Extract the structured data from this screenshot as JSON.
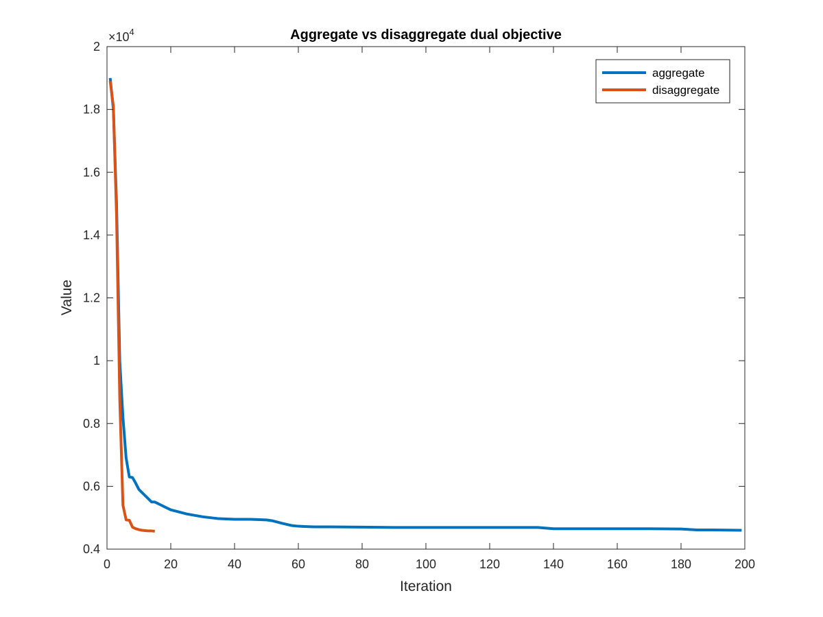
{
  "chart_data": {
    "type": "line",
    "title": "Aggregate vs disaggregate dual objective",
    "xlabel": "Iteration",
    "ylabel": "Value",
    "xlim": [
      0,
      200
    ],
    "ylim": [
      4000,
      20000
    ],
    "x_ticks": [
      0,
      20,
      40,
      60,
      80,
      100,
      120,
      140,
      160,
      180,
      200
    ],
    "x_tick_labels": [
      "0",
      "20",
      "40",
      "60",
      "80",
      "100",
      "120",
      "140",
      "160",
      "180",
      "200"
    ],
    "y_ticks": [
      4000,
      6000,
      8000,
      10000,
      12000,
      14000,
      16000,
      18000,
      20000
    ],
    "y_tick_labels": [
      "0.4",
      "0.6",
      "0.8",
      "1",
      "1.2",
      "1.4",
      "1.6",
      "1.8",
      "2"
    ],
    "y_exponent_label": "×10",
    "y_exponent_power": "4",
    "grid": false,
    "legend_position": "top-right",
    "series": [
      {
        "name": "aggregate",
        "color": "#0072BD",
        "x": [
          1,
          2,
          3,
          4,
          5,
          6,
          7,
          8,
          9,
          10,
          11,
          12,
          13,
          14,
          15,
          16,
          17,
          18,
          20,
          22,
          25,
          30,
          35,
          40,
          45,
          50,
          52,
          55,
          58,
          60,
          62,
          65,
          70,
          80,
          90,
          100,
          110,
          120,
          130,
          135,
          140,
          150,
          160,
          170,
          180,
          185,
          190,
          199
        ],
        "y": [
          19000,
          18000,
          15000,
          10000,
          8200,
          6900,
          6300,
          6280,
          6100,
          5900,
          5800,
          5700,
          5600,
          5500,
          5500,
          5450,
          5400,
          5350,
          5250,
          5200,
          5120,
          5030,
          4970,
          4950,
          4950,
          4930,
          4900,
          4820,
          4750,
          4730,
          4720,
          4710,
          4710,
          4700,
          4690,
          4690,
          4690,
          4690,
          4690,
          4690,
          4650,
          4650,
          4650,
          4650,
          4640,
          4610,
          4610,
          4600
        ]
      },
      {
        "name": "disaggregate",
        "color": "#D95319",
        "x": [
          1,
          2,
          3,
          4,
          5,
          6,
          7,
          8,
          9,
          10,
          11,
          12,
          13,
          14,
          15
        ],
        "y": [
          18900,
          18100,
          14600,
          8800,
          5400,
          4930,
          4920,
          4700,
          4650,
          4620,
          4600,
          4590,
          4580,
          4580,
          4570
        ]
      }
    ]
  }
}
